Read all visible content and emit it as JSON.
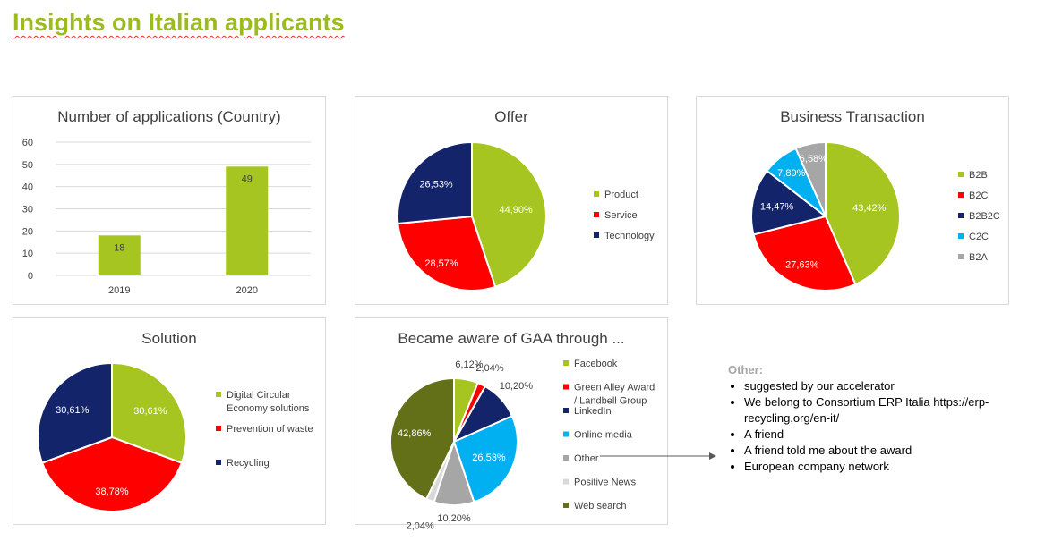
{
  "page_title": "Insights on Italian applicants",
  "colors": {
    "accent_green": "#9bbb1f",
    "green": "#a7c520",
    "red": "#ff0000",
    "navy": "#13246b",
    "cyan": "#00b0f0",
    "gray": "#a6a6a6",
    "dark_olive": "#637018",
    "light_gray": "#d9d9d9"
  },
  "chart_data": [
    {
      "id": "applications",
      "type": "bar",
      "title": "Number of applications (Country)",
      "categories": [
        "2019",
        "2020"
      ],
      "values": [
        18,
        49
      ],
      "value_labels": [
        "18",
        "49"
      ],
      "yticks": [
        "0",
        "10",
        "20",
        "30",
        "40",
        "50",
        "60"
      ],
      "ylim": [
        0,
        60
      ],
      "grid": true,
      "color": "#a7c520"
    },
    {
      "id": "offer",
      "type": "pie",
      "title": "Offer",
      "legend_position": "right",
      "slices": [
        {
          "name": "Product",
          "value": 44.9,
          "label": "44,90%",
          "color": "#a7c520"
        },
        {
          "name": "Service",
          "value": 28.57,
          "label": "28,57%",
          "color": "#ff0000"
        },
        {
          "name": "Technology",
          "value": 26.53,
          "label": "26,53%",
          "color": "#13246b"
        }
      ]
    },
    {
      "id": "business",
      "type": "pie",
      "title": "Business Transaction",
      "legend_position": "right",
      "slices": [
        {
          "name": "B2B",
          "value": 43.42,
          "label": "43,42%",
          "color": "#a7c520"
        },
        {
          "name": "B2C",
          "value": 27.63,
          "label": "27,63%",
          "color": "#ff0000"
        },
        {
          "name": "B2B2C",
          "value": 14.47,
          "label": "14,47%",
          "color": "#13246b"
        },
        {
          "name": "C2C",
          "value": 7.89,
          "label": "7,89%",
          "color": "#00b0f0"
        },
        {
          "name": "B2A",
          "value": 6.58,
          "label": "6,58%",
          "color": "#a6a6a6"
        }
      ]
    },
    {
      "id": "solution",
      "type": "pie",
      "title": "Solution",
      "legend_position": "right",
      "slices": [
        {
          "name": "Digital Circular Economy solutions",
          "value": 30.61,
          "label": "30,61%",
          "color": "#a7c520"
        },
        {
          "name": "Prevention of waste",
          "value": 38.78,
          "label": "38,78%",
          "color": "#ff0000"
        },
        {
          "name": "Recycling",
          "value": 30.61,
          "label": "30,61%",
          "color": "#13246b"
        }
      ]
    },
    {
      "id": "aware",
      "type": "pie",
      "title": "Became aware of GAA through ...",
      "legend_position": "right",
      "slices": [
        {
          "name": "Facebook",
          "value": 6.12,
          "label": "6,12%",
          "color": "#a7c520"
        },
        {
          "name": "Green Alley Award / Landbell Group",
          "value": 2.04,
          "label": "2,04%",
          "color": "#ff0000"
        },
        {
          "name": "LinkedIn",
          "value": 10.2,
          "label": "10,20%",
          "color": "#13246b"
        },
        {
          "name": "Online media",
          "value": 26.53,
          "label": "26,53%",
          "color": "#00b0f0"
        },
        {
          "name": "Other",
          "value": 10.2,
          "label": "10,20%",
          "color": "#a6a6a6"
        },
        {
          "name": "Positive News",
          "value": 2.04,
          "label": "2,04%",
          "color": "#d9d9d9"
        },
        {
          "name": "Web search",
          "value": 42.86,
          "label": "42,86%",
          "color": "#637018"
        }
      ]
    }
  ],
  "other": {
    "title": "Other:",
    "items": [
      "suggested by our accelerator",
      "We belong to Consortium ERP Italia   https://erp-recycling.org/en-it/",
      "A friend",
      "A friend told me about the award",
      "European company network"
    ]
  }
}
